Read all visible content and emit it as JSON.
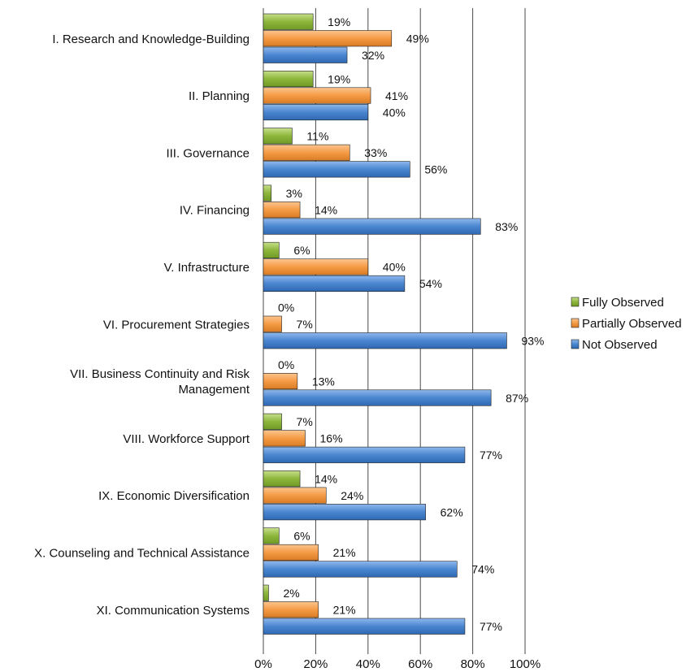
{
  "chart_data": {
    "type": "bar",
    "orientation": "horizontal",
    "categories": [
      "I. Research and Knowledge-Building",
      "II. Planning",
      "III. Governance",
      "IV. Financing",
      "V. Infrastructure",
      "VI. Procurement Strategies",
      [
        "VII. Business Continuity and Risk",
        "Management"
      ],
      "VIII. Workforce Support",
      "IX. Economic Diversification",
      "X. Counseling and Technical Assistance",
      "XI. Communication Systems"
    ],
    "series": [
      {
        "name": "Fully Observed",
        "color": "#8DB63C",
        "values": [
          19,
          19,
          11,
          3,
          6,
          0,
          0,
          7,
          14,
          6,
          2
        ],
        "labels": [
          "19%",
          "19%",
          "11%",
          "3%",
          "6%",
          "0%",
          "0%",
          "7%",
          "14%",
          "6%",
          "2%"
        ]
      },
      {
        "name": "Partially Observed",
        "color": "#F59B45",
        "values": [
          49,
          41,
          33,
          14,
          40,
          7,
          13,
          16,
          24,
          21,
          21
        ],
        "labels": [
          "49%",
          "41%",
          "33%",
          "14%",
          "40%",
          "7%",
          "13%",
          "16%",
          "24%",
          "21%",
          "21%"
        ]
      },
      {
        "name": "Not Observed",
        "color": "#4A86D0",
        "values": [
          32,
          40,
          56,
          83,
          54,
          93,
          87,
          77,
          62,
          74,
          77
        ],
        "labels": [
          "32%",
          "40%",
          "56%",
          "83%",
          "54%",
          "93%",
          "87%",
          "77%",
          "62%",
          "74%",
          "77%"
        ]
      }
    ],
    "x_ticks": [
      "0%",
      "20%",
      "40%",
      "60%",
      "80%",
      "100%"
    ],
    "xlim": [
      0,
      100
    ],
    "grid": true,
    "legend": "right"
  }
}
